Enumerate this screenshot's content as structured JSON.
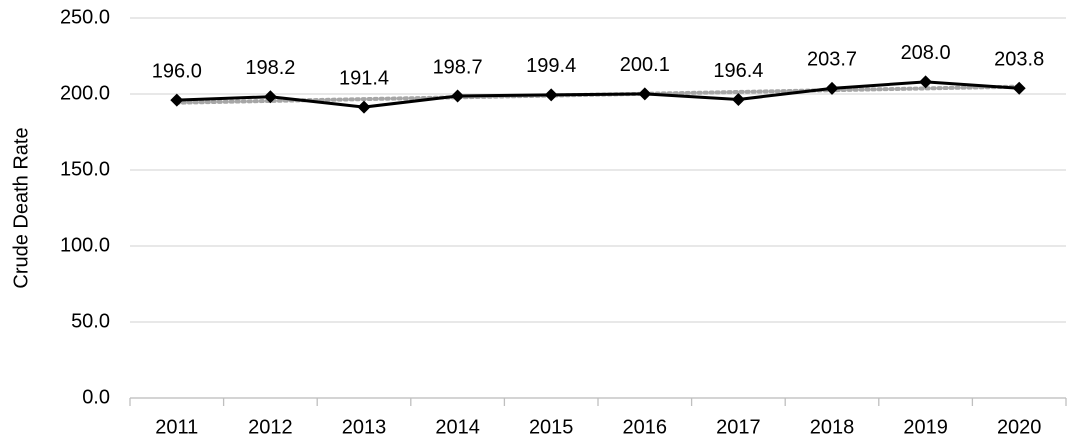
{
  "chart_data": {
    "type": "line",
    "y_label": "Crude Death Rate",
    "categories": [
      "2011",
      "2012",
      "2013",
      "2014",
      "2015",
      "2016",
      "2017",
      "2018",
      "2019",
      "2020"
    ],
    "values": [
      196.0,
      198.2,
      191.4,
      198.7,
      199.4,
      200.1,
      196.4,
      203.7,
      208.0,
      203.8
    ],
    "value_labels": [
      "196.0",
      "198.2",
      "191.4",
      "198.7",
      "199.4",
      "200.1",
      "196.4",
      "203.7",
      "208.0",
      "203.8"
    ],
    "color": "#000000",
    "trendline": true,
    "trendline_color": "#a6a6a6",
    "ylim": [
      0,
      250
    ],
    "yticks": [
      {
        "value": 0,
        "label": "0.0"
      },
      {
        "value": 50,
        "label": "50.0"
      },
      {
        "value": 100,
        "label": "100.0"
      },
      {
        "value": 150,
        "label": "150.0"
      },
      {
        "value": 200,
        "label": "200.0"
      },
      {
        "value": 250,
        "label": "250.0"
      }
    ],
    "grid": true
  }
}
